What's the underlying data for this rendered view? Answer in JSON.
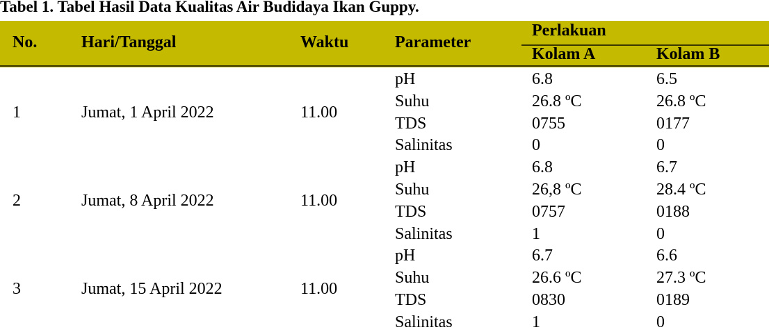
{
  "title": "Tabel 1. Tabel Hasil Data Kualitas Air Budidaya Ikan Guppy.",
  "header": {
    "no": "No.",
    "date": "Hari/Tanggal",
    "time": "Waktu",
    "parameter": "Parameter",
    "treatment": "Perlakuan",
    "pond_a": "Kolam A",
    "pond_b": "Kolam B"
  },
  "header_color": "#c4bb00",
  "rows": [
    {
      "no": "1",
      "date": "Jumat, 1 April 2022",
      "time": "11.00",
      "params": [
        {
          "name": "pH",
          "a": "6.8",
          "b": "6.5"
        },
        {
          "name": "Suhu",
          "a": "26.8 ºC",
          "b": "26.8 ºC"
        },
        {
          "name": "TDS",
          "a": "0755",
          "b": "0177"
        },
        {
          "name": "Salinitas",
          "a": "0",
          "b": "0"
        }
      ]
    },
    {
      "no": "2",
      "date": "Jumat, 8 April 2022",
      "time": "11.00",
      "params": [
        {
          "name": "pH",
          "a": "6.8",
          "b": "6.7"
        },
        {
          "name": "Suhu",
          "a": "26,8 ºC",
          "b": "28.4 ºC"
        },
        {
          "name": "TDS",
          "a": "0757",
          "b": "0188"
        },
        {
          "name": "Salinitas",
          "a": "1",
          "b": "0"
        }
      ]
    },
    {
      "no": "3",
      "date": "Jumat, 15 April 2022",
      "time": "11.00",
      "params": [
        {
          "name": "pH",
          "a": "6.7",
          "b": "6.6"
        },
        {
          "name": "Suhu",
          "a": "26.6 ºC",
          "b": "27.3 ºC"
        },
        {
          "name": "TDS",
          "a": "0830",
          "b": "0189"
        },
        {
          "name": "Salinitas",
          "a": "1",
          "b": "0"
        }
      ]
    }
  ]
}
